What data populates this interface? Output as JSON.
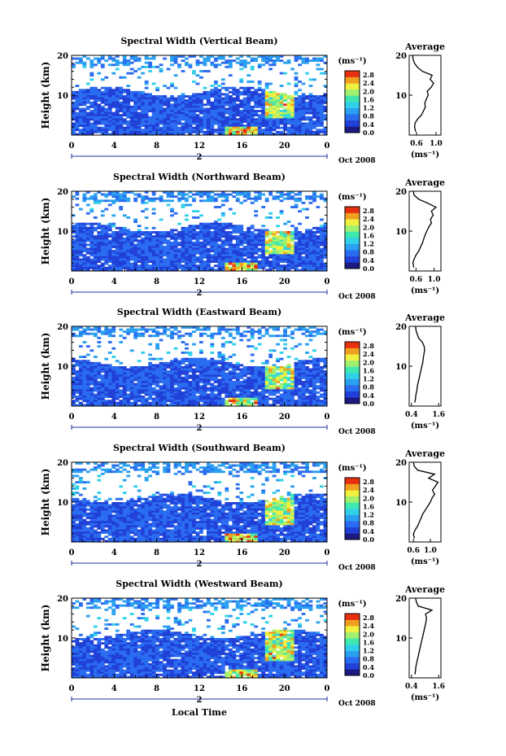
{
  "figure": {
    "xlabel": "Local Time",
    "date_label": "Oct 2008",
    "day_label": "2",
    "ylabel": "Height (km)",
    "cbar_unit": "(ms⁻¹)",
    "profile_title": "Average",
    "profile_xlabel": "(ms⁻¹)",
    "colormap": [
      "#1a1a80",
      "#2040d8",
      "#2a6cf0",
      "#2aa0f0",
      "#30d0e8",
      "#40e8b0",
      "#a0f070",
      "#f0f040",
      "#f0a020",
      "#e83010"
    ]
  },
  "chart_data": [
    {
      "type": "heatmap",
      "title": "Spectral Width (Vertical Beam)",
      "xticks": [
        "0",
        "4",
        "8",
        "12",
        "16",
        "20",
        "0"
      ],
      "xlim": [
        0,
        24
      ],
      "yticks": [
        "20",
        "10"
      ],
      "ylim": [
        0,
        20
      ],
      "colorbar": {
        "ticks": [
          "2.8",
          "2.4",
          "2.0",
          "1.6",
          "1.2",
          "0.8",
          "0.4",
          "0.0"
        ],
        "range": [
          0.0,
          3.0
        ]
      },
      "profile": {
        "title": "Average",
        "xticks": [
          "0.6",
          "1.0"
        ],
        "xlim": [
          0.45,
          1.1
        ],
        "yticks": [
          "20",
          "10"
        ],
        "ylim": [
          0,
          20
        ],
        "heights": [
          1,
          2,
          3,
          4,
          5,
          6,
          7,
          8,
          9,
          10,
          11,
          12,
          13,
          14,
          15,
          16,
          17,
          18,
          19,
          20
        ],
        "values": [
          0.58,
          0.56,
          0.57,
          0.62,
          0.7,
          0.74,
          0.78,
          0.77,
          0.8,
          0.84,
          0.82,
          0.9,
          0.95,
          0.88,
          0.92,
          0.72,
          0.62,
          0.56,
          0.53,
          0.52
        ]
      }
    },
    {
      "type": "heatmap",
      "title": "Spectral Width (Northward Beam)",
      "xticks": [
        "0",
        "4",
        "8",
        "12",
        "16",
        "20",
        "0"
      ],
      "xlim": [
        0,
        24
      ],
      "yticks": [
        "20",
        "10"
      ],
      "ylim": [
        0,
        20
      ],
      "colorbar": {
        "ticks": [
          "2.8",
          "2.4",
          "2.0",
          "1.6",
          "1.2",
          "0.8",
          "0.4",
          "0.0"
        ],
        "range": [
          0.0,
          3.0
        ]
      },
      "profile": {
        "title": "Average",
        "xticks": [
          "0.6",
          "1.0"
        ],
        "xlim": [
          0.45,
          1.15
        ],
        "yticks": [
          "20",
          "10"
        ],
        "ylim": [
          0,
          20
        ],
        "heights": [
          1,
          2,
          3,
          4,
          5,
          6,
          7,
          8,
          9,
          10,
          11,
          12,
          13,
          14,
          15,
          16,
          17,
          18,
          19,
          20
        ],
        "values": [
          0.55,
          0.53,
          0.56,
          0.6,
          0.66,
          0.7,
          0.74,
          0.77,
          0.8,
          0.84,
          0.88,
          0.94,
          0.92,
          0.98,
          0.94,
          1.04,
          0.86,
          0.66,
          0.56,
          0.54
        ]
      }
    },
    {
      "type": "heatmap",
      "title": "Spectral Width (Eastward Beam)",
      "xticks": [
        "0",
        "4",
        "8",
        "12",
        "16",
        "20",
        "0"
      ],
      "xlim": [
        0,
        24
      ],
      "yticks": [
        "20",
        "10"
      ],
      "ylim": [
        0,
        20
      ],
      "colorbar": {
        "ticks": [
          "2.8",
          "2.4",
          "2.0",
          "1.6",
          "1.2",
          "0.8",
          "0.4",
          "0.0"
        ],
        "range": [
          0.0,
          3.0
        ]
      },
      "profile": {
        "title": "Average",
        "xticks": [
          "0.4",
          "1.6"
        ],
        "xlim": [
          0.3,
          1.7
        ],
        "yticks": [
          "20",
          "10"
        ],
        "ylim": [
          0,
          20
        ],
        "heights": [
          1,
          2,
          3,
          4,
          5,
          6,
          7,
          8,
          9,
          10,
          11,
          12,
          13,
          14,
          15,
          16,
          17,
          18,
          19,
          20
        ],
        "values": [
          0.55,
          0.58,
          0.6,
          0.64,
          0.66,
          0.7,
          0.74,
          0.78,
          0.82,
          0.86,
          0.9,
          0.92,
          0.95,
          0.98,
          0.96,
          0.88,
          0.72,
          0.66,
          0.6,
          0.58
        ]
      }
    },
    {
      "type": "heatmap",
      "title": "Spectral Width (Southward Beam)",
      "xticks": [
        "0",
        "4",
        "8",
        "12",
        "16",
        "20",
        "0"
      ],
      "xlim": [
        0,
        24
      ],
      "yticks": [
        "20",
        "10"
      ],
      "ylim": [
        0,
        20
      ],
      "colorbar": {
        "ticks": [
          "2.8",
          "2.4",
          "2.0",
          "1.6",
          "1.2",
          "0.8",
          "0.4",
          "0.0"
        ],
        "range": [
          0.0,
          3.0
        ]
      },
      "profile": {
        "title": "Average",
        "xticks": [
          "0.6",
          "1.0"
        ],
        "xlim": [
          0.5,
          1.25
        ],
        "yticks": [
          "20",
          "10"
        ],
        "ylim": [
          0,
          20
        ],
        "heights": [
          1,
          2,
          3,
          4,
          5,
          6,
          7,
          8,
          9,
          10,
          11,
          12,
          13,
          14,
          15,
          16,
          17,
          18,
          19,
          20
        ],
        "values": [
          0.62,
          0.6,
          0.64,
          0.7,
          0.74,
          0.78,
          0.82,
          0.88,
          0.94,
          1.0,
          1.04,
          1.1,
          1.05,
          1.12,
          1.18,
          0.96,
          1.1,
          0.7,
          0.62,
          0.6
        ]
      }
    },
    {
      "type": "heatmap",
      "title": "Spectral Width (Westward Beam)",
      "xticks": [
        "0",
        "4",
        "8",
        "12",
        "16",
        "20",
        "0"
      ],
      "xlim": [
        0,
        24
      ],
      "yticks": [
        "20",
        "10"
      ],
      "ylim": [
        0,
        20
      ],
      "colorbar": {
        "ticks": [
          "2.8",
          "2.4",
          "2.0",
          "1.6",
          "1.2",
          "0.8",
          "0.4",
          "0.0"
        ],
        "range": [
          0.0,
          3.0
        ]
      },
      "profile": {
        "title": "Average",
        "xticks": [
          "0.4",
          "1.6"
        ],
        "xlim": [
          0.3,
          1.7
        ],
        "yticks": [
          "20",
          "10"
        ],
        "ylim": [
          0,
          20
        ],
        "heights": [
          1,
          2,
          3,
          4,
          5,
          6,
          7,
          8,
          9,
          10,
          11,
          12,
          13,
          14,
          15,
          16,
          17,
          18,
          19,
          20
        ],
        "values": [
          0.56,
          0.58,
          0.6,
          0.64,
          0.68,
          0.72,
          0.76,
          0.8,
          0.84,
          0.88,
          0.92,
          0.96,
          1.0,
          1.04,
          1.06,
          1.02,
          1.3,
          0.7,
          0.62,
          0.58
        ]
      }
    }
  ]
}
